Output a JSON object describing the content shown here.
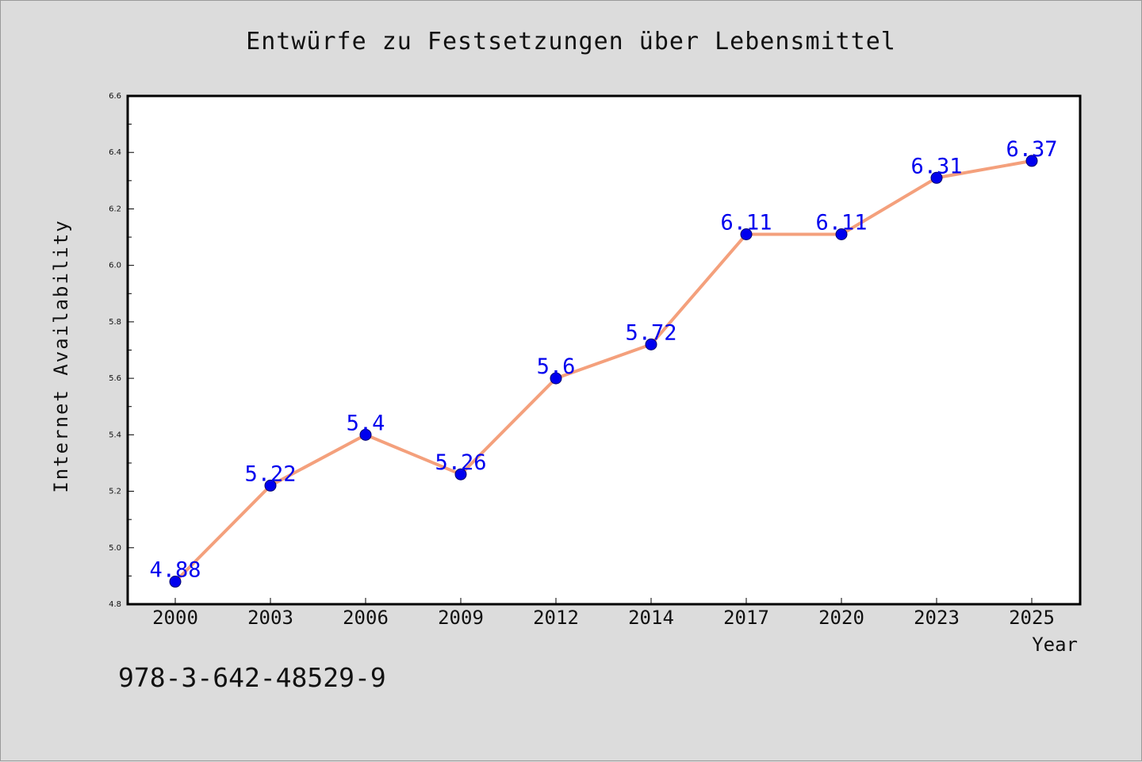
{
  "chart_data": {
    "type": "line",
    "title": "Entwürfe zu Festsetzungen über Lebensmittel",
    "xlabel": "Year",
    "ylabel": "Internet Availability",
    "categories": [
      "2000",
      "2003",
      "2006",
      "2009",
      "2012",
      "2014",
      "2017",
      "2020",
      "2023",
      "2025"
    ],
    "series": [
      {
        "values": [
          4.88,
          5.22,
          5.4,
          5.26,
          5.6,
          5.72,
          6.11,
          6.11,
          6.31,
          6.37
        ],
        "data_labels": [
          "4.88",
          "5.22",
          "5.4",
          "5.26",
          "5.6",
          "5.72",
          "6.11",
          "6.11",
          "6.31",
          "6.37"
        ]
      }
    ],
    "ylim": [
      4.8,
      6.6
    ],
    "yticks": [
      "4.8",
      "5.0",
      "5.2",
      "5.4",
      "5.6",
      "5.8",
      "6.0",
      "6.2",
      "6.4",
      "6.6"
    ],
    "grid": false,
    "colors": {
      "line": "#f4a07c",
      "marker": "#0000ee",
      "marker_edge": "#00006e",
      "data_label": "#0000ee",
      "axes_background": "#ffffff",
      "figure_background": "#dcdcdc"
    }
  },
  "footer": {
    "isbn": "978-3-642-48529-9"
  }
}
